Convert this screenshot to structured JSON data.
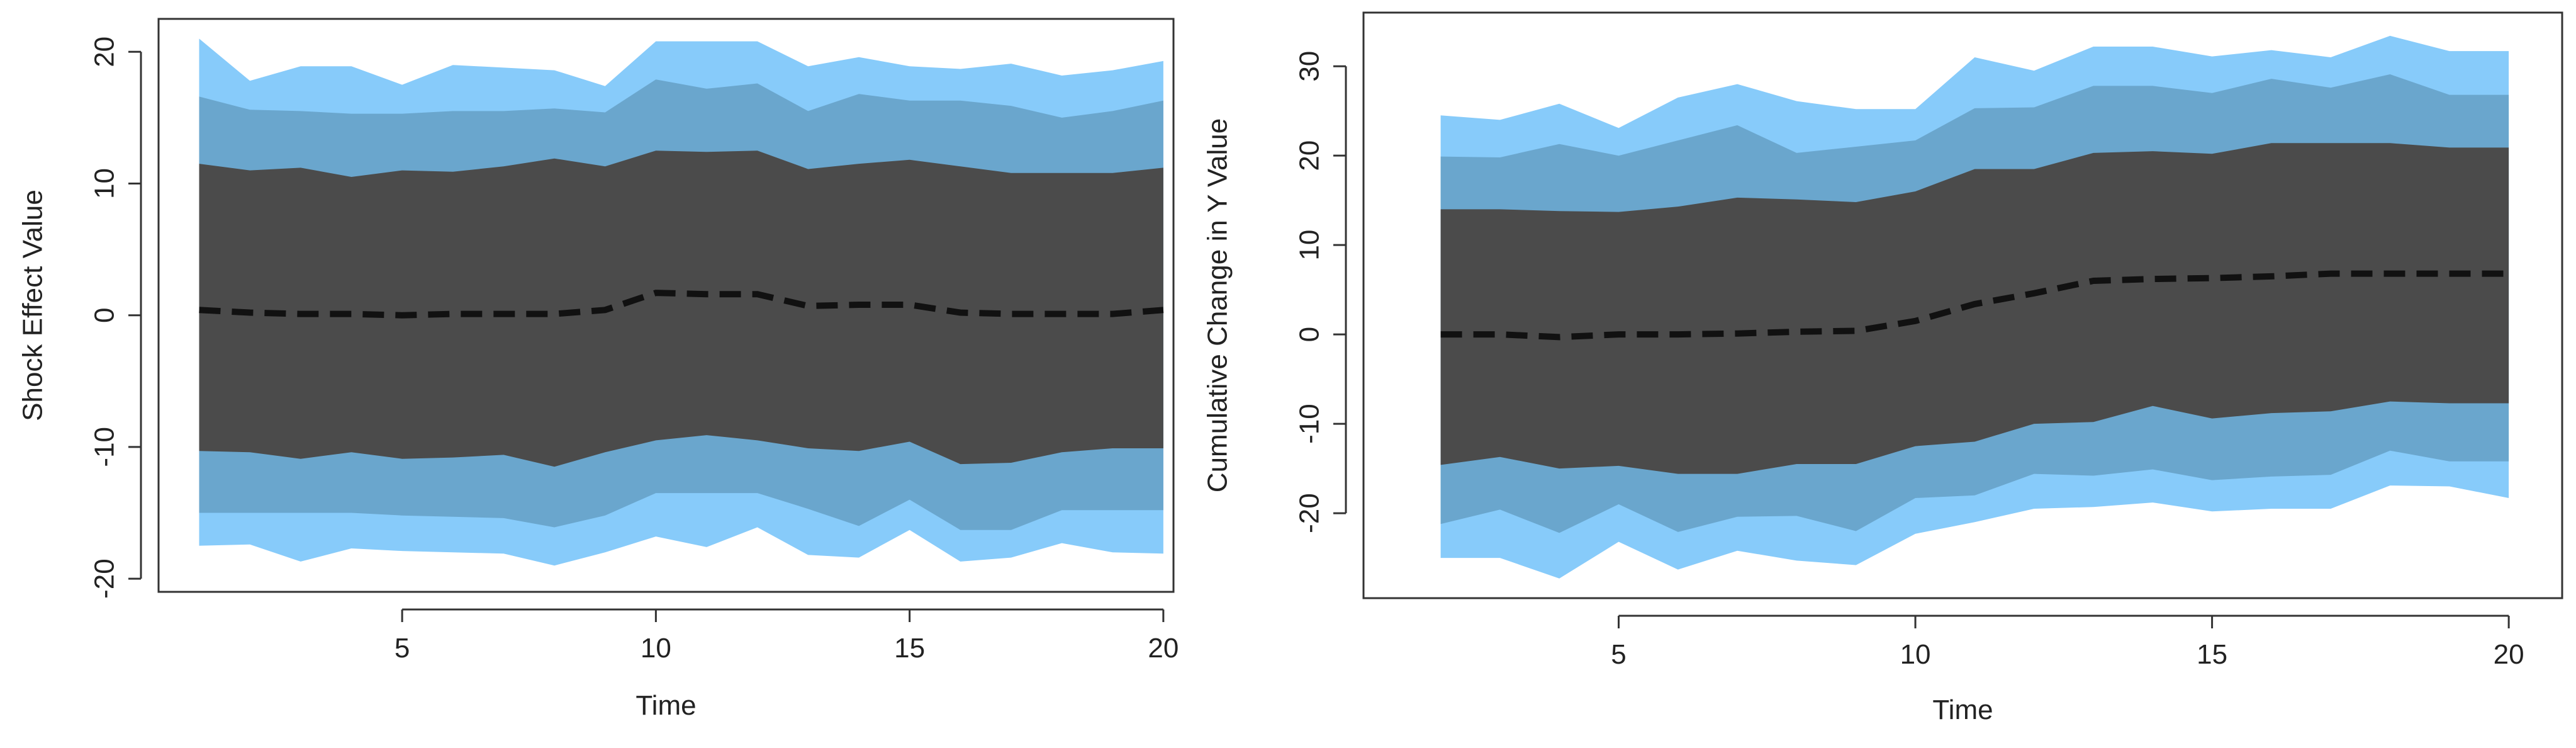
{
  "colors": {
    "outer_band": "#87cbfa",
    "middle_band": "#6aa6cd",
    "inner_band": "#4b4b4b",
    "median_line": "#111111",
    "axis": "#333333",
    "text": "#222222"
  },
  "chart_data": [
    {
      "type": "area",
      "title": "",
      "xlabel": "Time",
      "ylabel": "Shock Effect Value",
      "xlim": [
        0.2,
        20.2
      ],
      "ylim": [
        -21,
        22.5
      ],
      "xticks": [
        5,
        10,
        15,
        20
      ],
      "yticks": [
        -20,
        -10,
        0,
        10,
        20
      ],
      "box": true,
      "x": [
        1,
        2,
        3,
        4,
        5,
        6,
        7,
        8,
        9,
        10,
        11,
        12,
        13,
        14,
        15,
        16,
        17,
        18,
        19,
        20
      ],
      "series": [
        {
          "name": "outer_upper",
          "values": [
            21.0,
            17.8,
            18.9,
            18.9,
            17.5,
            19.0,
            18.8,
            18.6,
            17.4,
            20.8,
            20.8,
            20.8,
            18.9,
            19.6,
            18.9,
            18.7,
            19.1,
            18.2,
            18.6,
            19.3
          ]
        },
        {
          "name": "middle_upper",
          "values": [
            16.6,
            15.6,
            15.5,
            15.3,
            15.3,
            15.5,
            15.5,
            15.7,
            15.4,
            17.9,
            17.2,
            17.6,
            15.5,
            16.8,
            16.3,
            16.3,
            15.9,
            15.0,
            15.5,
            16.3
          ]
        },
        {
          "name": "inner_upper",
          "values": [
            11.5,
            11.0,
            11.2,
            10.5,
            11.0,
            10.9,
            11.3,
            11.9,
            11.3,
            12.5,
            12.4,
            12.5,
            11.1,
            11.5,
            11.8,
            11.3,
            10.8,
            10.8,
            10.8,
            11.2
          ]
        },
        {
          "name": "median",
          "values": [
            0.4,
            0.2,
            0.1,
            0.1,
            0.0,
            0.1,
            0.1,
            0.1,
            0.4,
            1.7,
            1.6,
            1.6,
            0.7,
            0.8,
            0.8,
            0.2,
            0.1,
            0.1,
            0.1,
            0.4
          ]
        },
        {
          "name": "inner_lower",
          "values": [
            -10.3,
            -10.4,
            -10.9,
            -10.4,
            -10.9,
            -10.8,
            -10.6,
            -11.5,
            -10.4,
            -9.5,
            -9.1,
            -9.5,
            -10.1,
            -10.3,
            -9.6,
            -11.3,
            -11.2,
            -10.4,
            -10.1,
            -10.1
          ]
        },
        {
          "name": "middle_lower",
          "values": [
            -15.0,
            -15.0,
            -15.0,
            -15.0,
            -15.2,
            -15.3,
            -15.4,
            -16.1,
            -15.2,
            -13.5,
            -13.5,
            -13.5,
            -14.7,
            -16.0,
            -14.0,
            -16.3,
            -16.3,
            -14.8,
            -14.8,
            -14.8
          ]
        },
        {
          "name": "outer_lower",
          "values": [
            -17.5,
            -17.4,
            -18.7,
            -17.7,
            -17.9,
            -18.0,
            -18.1,
            -19.0,
            -18.0,
            -16.8,
            -17.6,
            -16.1,
            -18.2,
            -18.4,
            -16.3,
            -18.7,
            -18.4,
            -17.3,
            -18.0,
            -18.1
          ]
        }
      ]
    },
    {
      "type": "area",
      "title": "",
      "xlabel": "Time",
      "ylabel": "Cumulative Change in Y Value",
      "xlim": [
        0.7,
        20.9
      ],
      "ylim": [
        -29.5,
        36
      ],
      "xticks": [
        5,
        10,
        15,
        20
      ],
      "yticks": [
        -20,
        -10,
        0,
        10,
        20,
        30
      ],
      "box": true,
      "x": [
        2,
        3,
        4,
        5,
        6,
        7,
        8,
        9,
        10,
        11,
        12,
        13,
        14,
        15,
        16,
        17,
        18,
        19,
        20
      ],
      "series": [
        {
          "name": "outer_upper",
          "values": [
            24.5,
            24.0,
            25.8,
            23.1,
            26.5,
            28.0,
            26.1,
            25.2,
            25.2,
            31.0,
            29.5,
            32.2,
            32.2,
            31.1,
            31.8,
            31.0,
            33.4,
            31.7,
            31.7
          ]
        },
        {
          "name": "middle_upper",
          "values": [
            19.9,
            19.8,
            21.3,
            20.0,
            21.7,
            23.4,
            20.3,
            21.0,
            21.7,
            25.3,
            25.4,
            27.8,
            27.8,
            27.0,
            28.6,
            27.6,
            29.1,
            26.8,
            26.8
          ]
        },
        {
          "name": "inner_upper",
          "values": [
            14.0,
            14.0,
            13.8,
            13.7,
            14.3,
            15.3,
            15.1,
            14.8,
            16.0,
            18.5,
            18.5,
            20.3,
            20.5,
            20.2,
            21.4,
            21.4,
            21.4,
            20.9,
            20.9
          ]
        },
        {
          "name": "median",
          "values": [
            0.0,
            0.0,
            -0.3,
            0.0,
            0.0,
            0.1,
            0.3,
            0.4,
            1.5,
            3.4,
            4.6,
            6.0,
            6.2,
            6.3,
            6.5,
            6.8,
            6.8,
            6.8,
            6.8
          ]
        },
        {
          "name": "inner_lower",
          "values": [
            -14.6,
            -13.7,
            -15.0,
            -14.7,
            -15.6,
            -15.6,
            -14.5,
            -14.5,
            -12.5,
            -12.0,
            -10.0,
            -9.8,
            -8.0,
            -9.4,
            -8.8,
            -8.6,
            -7.5,
            -7.7,
            -7.7
          ]
        },
        {
          "name": "middle_lower",
          "values": [
            -21.2,
            -19.6,
            -22.2,
            -19.0,
            -22.1,
            -20.4,
            -20.3,
            -22.0,
            -18.3,
            -18.0,
            -15.6,
            -15.8,
            -15.1,
            -16.3,
            -15.9,
            -15.7,
            -13.0,
            -14.2,
            -14.2
          ]
        },
        {
          "name": "outer_lower",
          "values": [
            -25.0,
            -25.0,
            -27.3,
            -23.2,
            -26.3,
            -24.2,
            -25.3,
            -25.8,
            -22.3,
            -21.0,
            -19.5,
            -19.3,
            -18.8,
            -19.8,
            -19.5,
            -19.5,
            -16.9,
            -17.0,
            -18.3
          ]
        }
      ]
    }
  ]
}
